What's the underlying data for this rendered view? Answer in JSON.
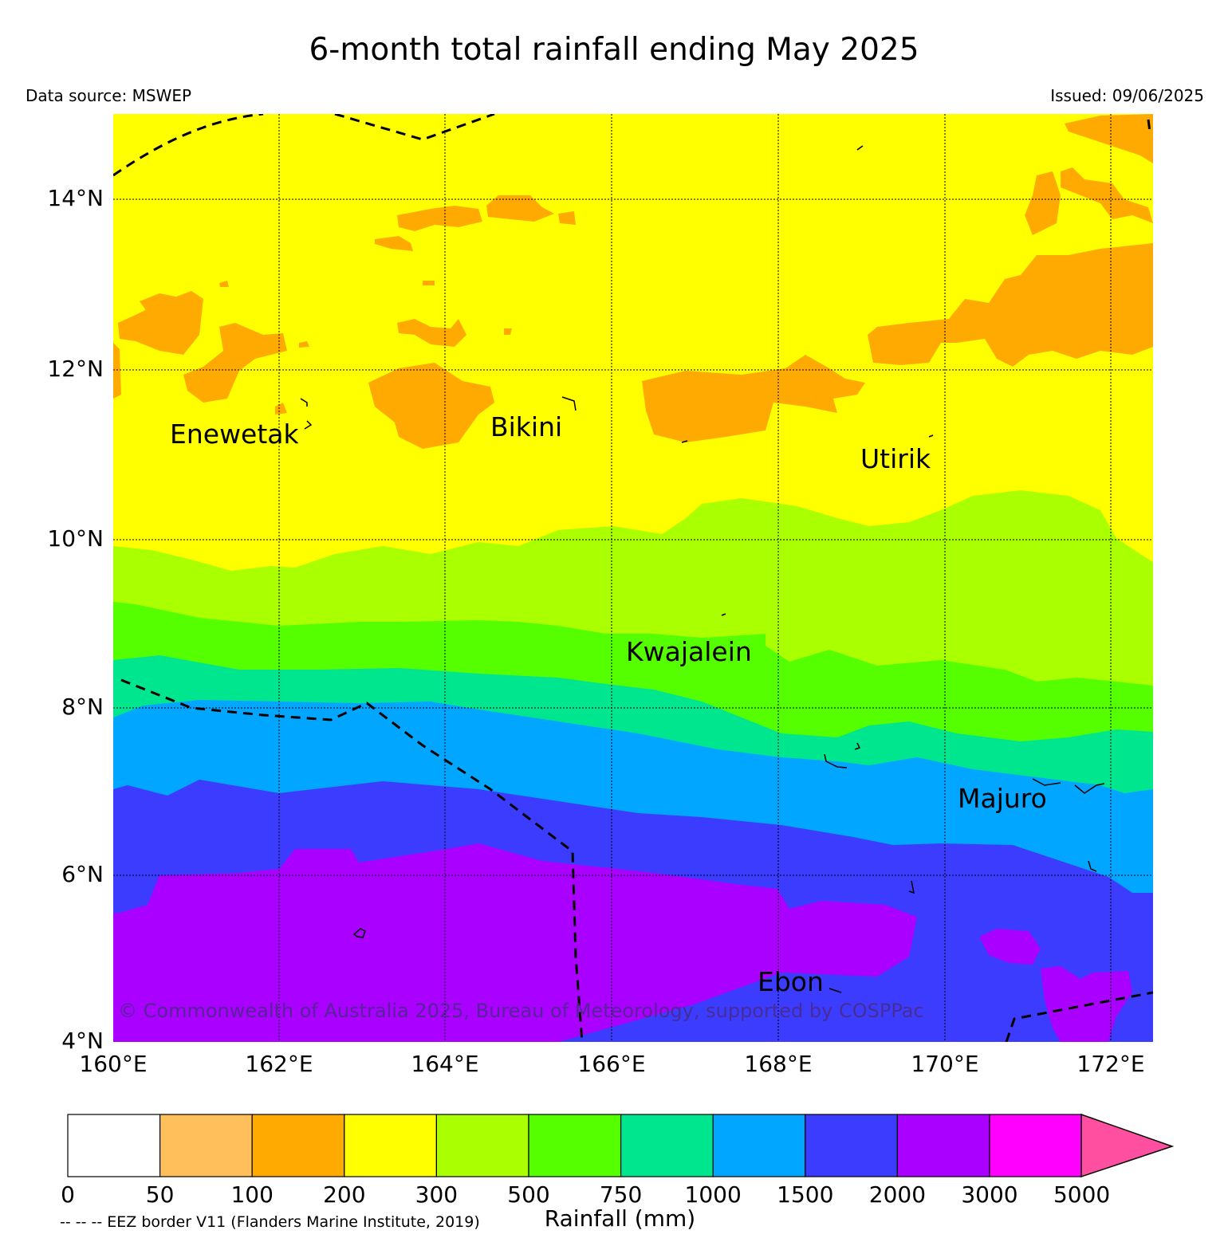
{
  "title": "6-month total rainfall ending May 2025",
  "data_source": "Data source: MSWEP",
  "issued": "Issued: 09/06/2025",
  "copyright": "© Commonwealth of Australia 2025, Bureau of Meteorology, supported by COSPPac",
  "map": {
    "lon_range": [
      160,
      172.5
    ],
    "lat_range": [
      4,
      15
    ],
    "lat_labels": [
      "4°N",
      "6°N",
      "8°N",
      "10°N",
      "12°N",
      "14°N"
    ],
    "lon_labels": [
      "160°E",
      "162°E",
      "164°E",
      "166°E",
      "168°E",
      "170°E",
      "172°E"
    ],
    "grid": true,
    "places": [
      {
        "name": "Enewetak",
        "lon": 161.9,
        "lat": 11.3
      },
      {
        "name": "Bikini",
        "lon": 165.1,
        "lat": 11.45
      },
      {
        "name": "Utirik",
        "lon": 169.7,
        "lat": 10.95
      },
      {
        "name": "Kwajalein",
        "lon": 167.0,
        "lat": 8.7
      },
      {
        "name": "Majuro",
        "lon": 170.7,
        "lat": 6.95
      },
      {
        "name": "Ebon",
        "lon": 168.15,
        "lat": 4.75
      }
    ]
  },
  "colorbar": {
    "label": "Rainfall (mm)",
    "ticks": [
      "0",
      "50",
      "100",
      "200",
      "300",
      "500",
      "750",
      "1000",
      "1500",
      "2000",
      "3000",
      "5000"
    ],
    "colors": [
      "#ffffff",
      "#ffbf5a",
      "#ffaa00",
      "#ffff00",
      "#aaff00",
      "#55ff00",
      "#00e68f",
      "#00a6ff",
      "#3c3cff",
      "#aa00ff",
      "#ff00ff",
      "#ff4fa0"
    ],
    "extend": "max"
  },
  "eez_note": "-- -- -- EEZ border V11 (Flanders Marine Institute, 2019)"
}
